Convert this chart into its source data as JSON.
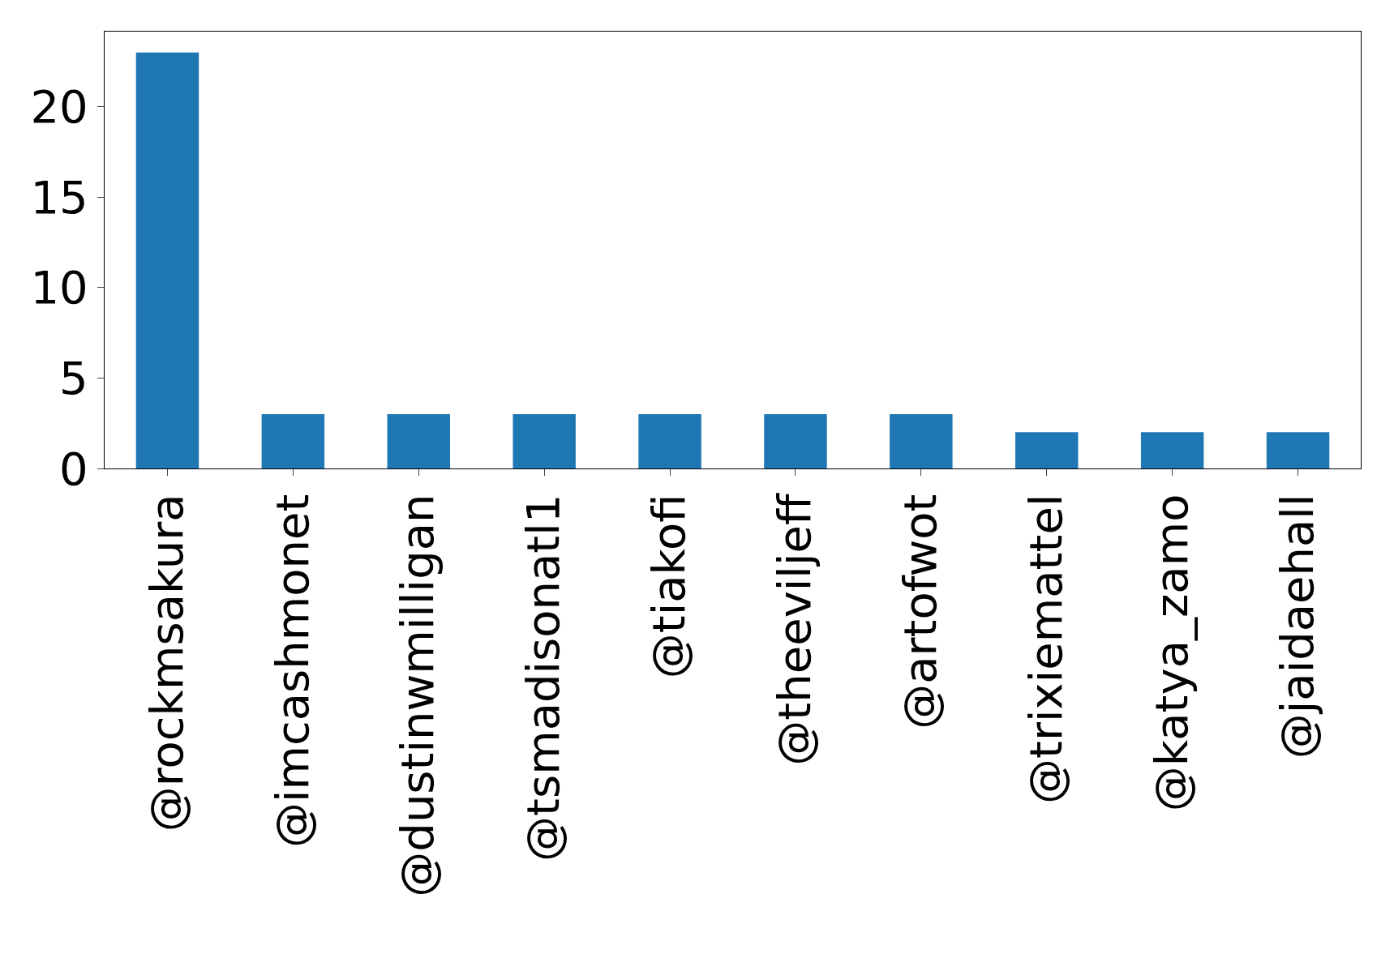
{
  "chart_data": {
    "type": "bar",
    "categories": [
      "@rockmsakura",
      "@imcashmonet",
      "@dustinwmilligan",
      "@tsmadisonatl1",
      "@tiakofi",
      "@theeviljeff",
      "@artofwot",
      "@trixiemattel",
      "@katya_zamo",
      "@jaidaehall"
    ],
    "values": [
      23,
      3,
      3,
      3,
      3,
      3,
      3,
      2,
      2,
      2
    ],
    "color": "#1f77b4",
    "ylim": [
      0,
      24.15
    ],
    "yticks": [
      0,
      5,
      10,
      15,
      20
    ]
  }
}
